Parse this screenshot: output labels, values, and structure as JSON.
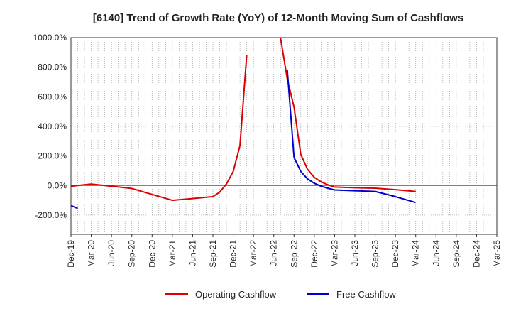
{
  "chart_data": {
    "type": "line",
    "title": "[6140]  Trend of Growth Rate (YoY) of 12-Month Moving Sum of Cashflows",
    "xlabel": "",
    "ylabel": "",
    "ylim": [
      -330,
      1000
    ],
    "y_ticks": [
      -200,
      0,
      200,
      400,
      600,
      800,
      1000
    ],
    "y_tick_labels": [
      "-200.0%",
      "0.0%",
      "200.0%",
      "400.0%",
      "600.0%",
      "800.0%",
      "1000.0%"
    ],
    "x_tick_labels": [
      "Dec-19",
      "Mar-20",
      "Jun-20",
      "Sep-20",
      "Dec-20",
      "Mar-21",
      "Jun-21",
      "Sep-21",
      "Dec-21",
      "Mar-22",
      "Jun-22",
      "Sep-22",
      "Dec-22",
      "Mar-23",
      "Jun-23",
      "Sep-23",
      "Dec-23",
      "Mar-24",
      "Jun-24",
      "Sep-24",
      "Dec-24",
      "Mar-25"
    ],
    "x_range_months": [
      "Dec-19",
      "Mar-25"
    ],
    "grid": true,
    "legend_position": "bottom",
    "series": [
      {
        "name": "Operating Cashflow",
        "color": "#dd0000",
        "points": [
          [
            "Dec-19",
            -5
          ],
          [
            "Mar-20",
            10
          ],
          [
            "Jun-20",
            -5
          ],
          [
            "Sep-20",
            -20
          ],
          [
            "Dec-20",
            -60
          ],
          [
            "Mar-21",
            -100
          ],
          [
            "Jun-21",
            -88
          ],
          [
            "Sep-21",
            -75
          ],
          [
            "Oct-21",
            -45
          ],
          [
            "Nov-21",
            10
          ],
          [
            "Dec-21",
            95
          ],
          [
            "Jan-22",
            270
          ],
          [
            "Feb-22",
            880
          ],
          null,
          [
            "Jul-22",
            1000
          ],
          [
            "Aug-22",
            720
          ],
          [
            "Sep-22",
            530
          ],
          [
            "Oct-22",
            210
          ],
          [
            "Nov-22",
            110
          ],
          [
            "Dec-22",
            55
          ],
          [
            "Jan-23",
            25
          ],
          [
            "Feb-23",
            5
          ],
          [
            "Mar-23",
            -10
          ],
          [
            "Jun-23",
            -15
          ],
          [
            "Sep-23",
            -18
          ],
          [
            "Dec-23",
            -28
          ],
          [
            "Mar-24",
            -40
          ]
        ]
      },
      {
        "name": "Free Cashflow",
        "color": "#0000cc",
        "points": [
          [
            "Dec-19",
            -135
          ],
          [
            "Jan-20",
            -155
          ],
          null,
          [
            "Aug-22",
            780
          ],
          [
            "Sep-22",
            190
          ],
          [
            "Oct-22",
            95
          ],
          [
            "Nov-22",
            45
          ],
          [
            "Dec-22",
            15
          ],
          [
            "Jan-23",
            -5
          ],
          [
            "Feb-23",
            -18
          ],
          [
            "Mar-23",
            -30
          ],
          [
            "Jun-23",
            -35
          ],
          [
            "Sep-23",
            -40
          ],
          [
            "Dec-23",
            -75
          ],
          [
            "Mar-24",
            -115
          ]
        ]
      }
    ]
  }
}
